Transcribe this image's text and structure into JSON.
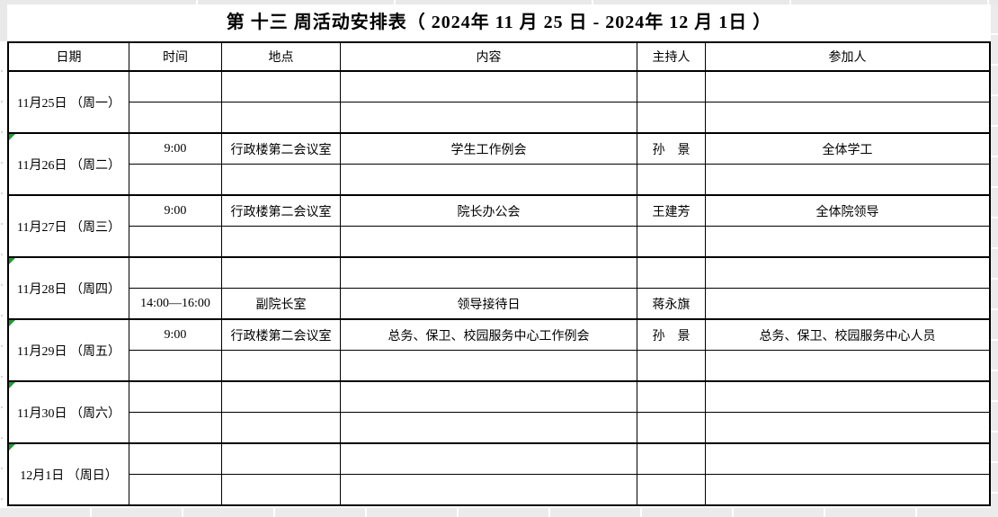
{
  "title": "第 十三 周活动安排表（ 2024年 11 月 25 日 - 2024年 12 月 1日 ）",
  "columns": [
    "日期",
    "时间",
    "地点",
    "内容",
    "主持人",
    "参加人"
  ],
  "groups": [
    {
      "date": "11月25日 （周一）",
      "rows": [
        [
          "",
          "",
          "",
          "",
          ""
        ],
        [
          "",
          "",
          "",
          "",
          ""
        ]
      ]
    },
    {
      "date": "11月26日 （周二）",
      "rows": [
        [
          "9:00",
          "行政楼第二会议室",
          "学生工作例会",
          "孙　景",
          "全体学工"
        ],
        [
          "",
          "",
          "",
          "",
          ""
        ]
      ]
    },
    {
      "date": "11月27日 （周三）",
      "rows": [
        [
          "9:00",
          "行政楼第二会议室",
          "院长办公会",
          "王建芳",
          "全体院领导"
        ],
        [
          "",
          "",
          "",
          "",
          ""
        ]
      ]
    },
    {
      "date": "11月28日 （周四）",
      "rows": [
        [
          "",
          "",
          "",
          "",
          ""
        ],
        [
          "14:00—16:00",
          "副院长室",
          "领导接待日",
          "蒋永旗",
          ""
        ]
      ]
    },
    {
      "date": "11月29日 （周五）",
      "rows": [
        [
          "9:00",
          "行政楼第二会议室",
          "总务、保卫、校园服务中心工作例会",
          "孙　景",
          "总务、保卫、校园服务中心人员"
        ],
        [
          "",
          "",
          "",
          "",
          ""
        ]
      ]
    },
    {
      "date": "11月30日 （周六）",
      "rows": [
        [
          "",
          "",
          "",
          "",
          ""
        ],
        [
          "",
          "",
          "",
          "",
          ""
        ]
      ]
    },
    {
      "date": "12月1日 （周日）",
      "rows": [
        [
          "",
          "",
          "",
          "",
          ""
        ],
        [
          "",
          "",
          "",
          "",
          ""
        ]
      ]
    }
  ],
  "colors": {
    "border": "#000000",
    "error_indicator_green": "#1f9d35",
    "gutter_gray": "#e9e9e9"
  }
}
